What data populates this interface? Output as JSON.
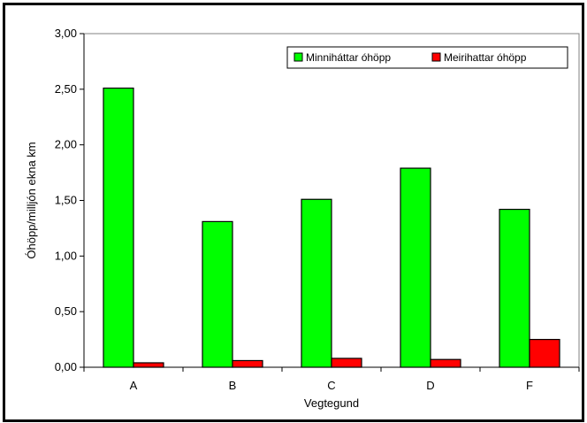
{
  "chart_data": {
    "type": "bar",
    "categories": [
      "A",
      "B",
      "C",
      "D",
      "F"
    ],
    "series": [
      {
        "name": "Minniháttar óhöpp",
        "color": "#00ff00",
        "values": [
          2.51,
          1.31,
          1.51,
          1.79,
          1.42
        ]
      },
      {
        "name": "Meirihattar óhöpp",
        "color": "#ff0000",
        "values": [
          0.04,
          0.06,
          0.08,
          0.07,
          0.25
        ]
      }
    ],
    "xlabel": "Vegtegund",
    "ylabel": "Óhöpp/milljón ekna km",
    "ylim": [
      0,
      3
    ],
    "yticks": [
      "0,00",
      "0,50",
      "1,00",
      "1,50",
      "2,00",
      "2,50",
      "3,00"
    ],
    "legend": "top-right",
    "grid": false
  }
}
